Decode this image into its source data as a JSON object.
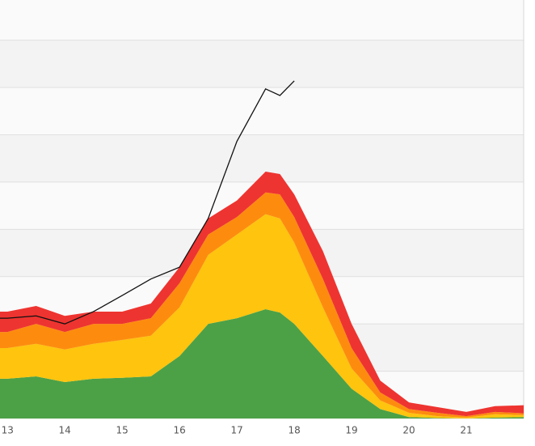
{
  "chart_data": {
    "type": "stacked_area",
    "x": [
      12.87,
      13,
      13.5,
      14,
      14.5,
      15,
      15.5,
      16,
      16.5,
      17,
      17.5,
      17.75,
      18,
      18.5,
      19,
      19.5,
      20,
      20.5,
      21,
      21.5,
      22
    ],
    "series": [
      {
        "color": "#4ca146",
        "values": [
          0.84,
          0.84,
          0.89,
          0.77,
          0.84,
          0.86,
          0.89,
          1.32,
          2.0,
          2.12,
          2.31,
          2.24,
          2.0,
          1.32,
          0.63,
          0.2,
          0.03,
          0.01,
          0,
          0.02,
          0.03
        ]
      },
      {
        "color": "#fec40e",
        "values": [
          0.65,
          0.65,
          0.69,
          0.69,
          0.74,
          0.8,
          0.86,
          1.03,
          1.46,
          1.77,
          2.01,
          1.99,
          1.72,
          1.03,
          0.43,
          0.18,
          0.09,
          0.04,
          0.02,
          0.07,
          0.04
        ]
      },
      {
        "color": "#fd8c0e",
        "values": [
          0.34,
          0.34,
          0.42,
          0.37,
          0.42,
          0.34,
          0.37,
          0.51,
          0.43,
          0.37,
          0.46,
          0.51,
          0.54,
          0.6,
          0.43,
          0.17,
          0.08,
          0.07,
          0.03,
          0.05,
          0.04
        ]
      },
      {
        "color": "#ee3430",
        "values": [
          0.43,
          0.43,
          0.38,
          0.34,
          0.26,
          0.26,
          0.31,
          0.34,
          0.34,
          0.35,
          0.44,
          0.43,
          0.48,
          0.59,
          0.51,
          0.25,
          0.14,
          0.12,
          0.09,
          0.12,
          0.17
        ]
      }
    ],
    "line": {
      "color": "#111111",
      "values": [
        2.12,
        2.12,
        2.17,
        2.0,
        2.26,
        2.6,
        2.95,
        3.2,
        4.23,
        5.86,
        6.97,
        6.83,
        7.14,
        null,
        null,
        null,
        null,
        null,
        null,
        null,
        null
      ]
    },
    "xlim": [
      12.87,
      22
    ],
    "xticks": [
      13,
      14,
      15,
      16,
      17,
      18,
      19,
      20,
      21
    ],
    "ylim": [
      0,
      8.85
    ],
    "yticks": [
      0,
      1,
      2,
      3,
      4,
      5,
      6,
      7,
      8
    ],
    "grid": true
  }
}
